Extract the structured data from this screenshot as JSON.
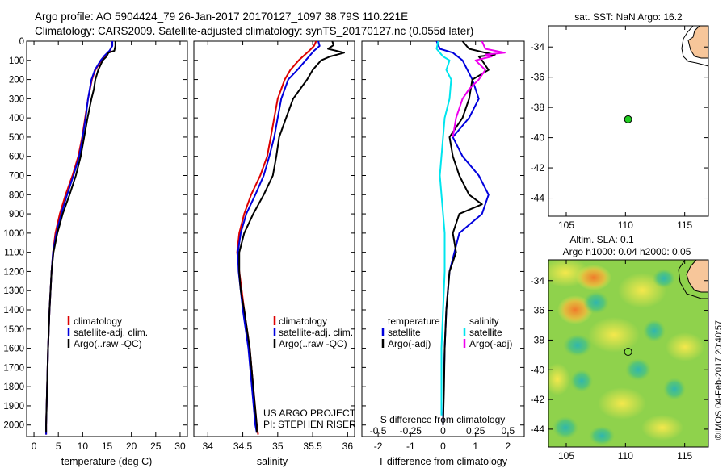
{
  "title": {
    "line1": "Argo profile: AO 5904424_79 26-Jan-2017 20170127_1097 38.79S 110.221E",
    "line2": "Climatology: CARS2009. Satellite-adjusted climatology: synTS_20170127.nc (0.055d later)"
  },
  "colors": {
    "climatology": "#dd0000",
    "satellite": "#0000dd",
    "argo": "#000000",
    "sal_satellite": "#00e5ee",
    "sal_argo": "#ee00ee",
    "land": "#f7c69a",
    "float_marker": "#22cc22"
  },
  "chart_data": [
    {
      "type": "line",
      "name": "temperature-profile",
      "xlabel": "temperature (deg C)",
      "xlim": [
        -1.5,
        31.5
      ],
      "ylim": [
        2060,
        0
      ],
      "xticks": [
        "0",
        "5",
        "10",
        "15",
        "20",
        "25",
        "30"
      ],
      "yticks": [
        "0",
        "100",
        "200",
        "300",
        "400",
        "500",
        "600",
        "700",
        "800",
        "900",
        "1000",
        "1100",
        "1200",
        "1300",
        "1400",
        "1500",
        "1600",
        "1700",
        "1800",
        "1900",
        "2000"
      ],
      "legend": [
        "climatology",
        "satellite-adj. clim.",
        "Argo(..raw -QC)"
      ],
      "series": [
        {
          "name": "climatology",
          "color": "#dd0000",
          "depth": [
            0,
            25,
            50,
            75,
            100,
            150,
            200,
            300,
            400,
            500,
            600,
            700,
            800,
            900,
            1000,
            1100,
            1200,
            1400,
            1600,
            1800,
            2000,
            2050
          ],
          "values": [
            16.0,
            16.0,
            15.6,
            14.6,
            13.8,
            12.6,
            11.9,
            11.1,
            10.5,
            9.9,
            9.1,
            7.9,
            6.5,
            5.3,
            4.4,
            3.9,
            3.6,
            3.2,
            2.9,
            2.7,
            2.5,
            2.5
          ]
        },
        {
          "name": "satellite-adj. clim.",
          "color": "#0000dd",
          "depth": [
            0,
            25,
            50,
            75,
            100,
            150,
            200,
            300,
            400,
            500,
            600,
            700,
            800,
            900,
            1000,
            1100,
            1200,
            1400,
            1600,
            1800,
            2000,
            2050
          ],
          "values": [
            16.1,
            16.1,
            15.5,
            14.5,
            13.7,
            12.5,
            11.8,
            11.1,
            10.6,
            10.0,
            9.3,
            8.1,
            6.8,
            5.6,
            4.6,
            3.9,
            3.6,
            3.2,
            2.9,
            2.7,
            2.5,
            2.5
          ]
        },
        {
          "name": "Argo(..raw -QC)",
          "color": "#000000",
          "depth": [
            0,
            25,
            50,
            60,
            80,
            100,
            150,
            200,
            250,
            300,
            350,
            400,
            500,
            600,
            700,
            800,
            900,
            1000,
            1100,
            1200,
            1400,
            1600,
            1800,
            2000,
            2040
          ],
          "values": [
            16.7,
            16.7,
            16.5,
            15.3,
            14.9,
            14.1,
            13.2,
            12.6,
            12.3,
            11.8,
            11.4,
            11.0,
            10.3,
            9.6,
            8.6,
            7.3,
            5.9,
            4.8,
            4.0,
            3.6,
            3.2,
            2.9,
            2.7,
            2.5,
            2.5
          ]
        }
      ]
    },
    {
      "type": "line",
      "name": "salinity-profile",
      "xlabel": "salinity",
      "xlim": [
        33.8,
        36.1
      ],
      "ylim": [
        2060,
        0
      ],
      "xticks": [
        "34",
        "34.5",
        "35",
        "35.5",
        "36"
      ],
      "legend": [
        "climatology",
        "satellite-adj. clim.",
        "Argo(..raw -QC)"
      ],
      "annotation": [
        "US ARGO PROJECT",
        "PI: STEPHEN RISER"
      ],
      "series": [
        {
          "name": "climatology",
          "color": "#dd0000",
          "depth": [
            0,
            25,
            50,
            100,
            150,
            200,
            300,
            400,
            500,
            600,
            700,
            800,
            900,
            1000,
            1100,
            1200,
            1400,
            1600,
            1800,
            2000,
            2050
          ],
          "values": [
            35.55,
            35.52,
            35.45,
            35.3,
            35.18,
            35.1,
            35.0,
            34.95,
            34.9,
            34.85,
            34.75,
            34.62,
            34.52,
            34.45,
            34.42,
            34.45,
            34.52,
            34.6,
            34.65,
            34.7,
            34.72
          ]
        },
        {
          "name": "satellite-adj. clim.",
          "color": "#0000dd",
          "depth": [
            0,
            25,
            50,
            100,
            150,
            200,
            300,
            400,
            500,
            600,
            700,
            800,
            900,
            1000,
            1100,
            1200,
            1400,
            1600,
            1800,
            2000,
            2040
          ],
          "values": [
            35.58,
            35.6,
            35.52,
            35.4,
            35.28,
            35.15,
            35.05,
            35.0,
            34.95,
            34.88,
            34.8,
            34.68,
            34.55,
            34.47,
            34.43,
            34.44,
            34.5,
            34.58,
            34.63,
            34.68,
            34.7
          ]
        },
        {
          "name": "Argo(..raw -QC)",
          "color": "#000000",
          "depth": [
            0,
            20,
            40,
            60,
            70,
            80,
            100,
            150,
            200,
            250,
            300,
            400,
            500,
            600,
            700,
            800,
            900,
            1000,
            1100,
            1200,
            1300,
            1400,
            1600,
            1800,
            2000,
            2040
          ],
          "values": [
            35.78,
            35.8,
            35.72,
            35.95,
            35.85,
            35.75,
            35.62,
            35.5,
            35.42,
            35.32,
            35.22,
            35.12,
            35.02,
            34.98,
            34.93,
            34.8,
            34.65,
            34.52,
            34.45,
            34.45,
            34.47,
            34.52,
            34.6,
            34.65,
            34.7,
            34.7
          ]
        }
      ]
    },
    {
      "type": "line",
      "name": "difference-profile",
      "xlabel": "T difference from climatology",
      "xlabel_top": "S difference from climatology",
      "xlim": [
        -2.5,
        2.5
      ],
      "ylim": [
        2060,
        0
      ],
      "xticks": [
        "-2",
        "-1",
        "0",
        "1",
        "2"
      ],
      "xticks_s": [
        "-0.5",
        "-0.25",
        "0",
        "0.25",
        "0.5"
      ],
      "legend_left_title": "temperature",
      "legend_right_title": "salinity",
      "legend": [
        "satellite",
        "Argo(-adj)",
        "satellite",
        "Argo(-adj)"
      ],
      "series": [
        {
          "name": "satellite",
          "color": "#0000dd",
          "depth": [
            0,
            40,
            60,
            100,
            200,
            300,
            400,
            500,
            600,
            700,
            800,
            900,
            1000,
            1200,
            1400,
            1600,
            1800,
            2000
          ],
          "values": [
            -0.2,
            -0.1,
            0.3,
            0.6,
            0.9,
            1.1,
            0.8,
            0.3,
            0.6,
            1.1,
            1.4,
            1.2,
            0.5,
            0.2,
            0.1,
            0.05,
            0.02,
            0.0
          ]
        },
        {
          "name": "Argo(-adj)",
          "color": "#000000",
          "depth": [
            0,
            40,
            60,
            70,
            80,
            100,
            150,
            200,
            300,
            400,
            500,
            600,
            700,
            800,
            850,
            900,
            1000,
            1100,
            1200,
            1400,
            1600,
            1800,
            2000
          ],
          "values": [
            0.6,
            0.8,
            1.3,
            1.6,
            1.1,
            1.2,
            1.4,
            0.9,
            0.8,
            0.6,
            0.2,
            0.3,
            0.5,
            0.8,
            1.2,
            0.5,
            0.3,
            0.4,
            0.2,
            0.1,
            0.05,
            0.03,
            0.0
          ]
        },
        {
          "name": "satellite",
          "color": "#00e5ee",
          "depth": [
            0,
            40,
            60,
            80,
            100,
            150,
            200,
            300,
            400,
            500,
            600,
            700,
            800,
            900,
            1000,
            1200,
            1400,
            1600,
            1800,
            1950
          ],
          "values": [
            -0.15,
            -0.2,
            -0.1,
            0.0,
            0.2,
            0.1,
            0.25,
            0.2,
            0.05,
            0.0,
            -0.05,
            -0.1,
            -0.05,
            0.0,
            0.05,
            0.05,
            0.0,
            -0.05,
            -0.05,
            -0.05
          ]
        },
        {
          "name": "Argo(-adj)",
          "color": "#ee00ee",
          "depth": [
            0,
            40,
            60,
            70,
            80,
            100,
            150,
            200,
            250,
            300,
            350,
            400,
            500
          ],
          "values": [
            1.2,
            1.3,
            1.9,
            1.3,
            1.5,
            1.0,
            1.3,
            1.1,
            0.8,
            0.6,
            0.5,
            0.4,
            0.3
          ]
        }
      ]
    },
    {
      "type": "scatter",
      "name": "sst-map",
      "title": "sat. SST: NaN Argo: 16.2",
      "xlim": [
        103.5,
        117
      ],
      "ylim": [
        -45.2,
        -32.6
      ],
      "xticks": [
        "105",
        "110",
        "115"
      ],
      "yticks": [
        "-34",
        "-36",
        "-38",
        "-40",
        "-42",
        "-44"
      ],
      "points": [
        {
          "lon": 110.22,
          "lat": -38.79
        }
      ]
    },
    {
      "type": "heatmap",
      "name": "sla-map",
      "title_line1": "Altim. SLA: 0.1",
      "title_line2": "Argo h1000: 0.04 h2000: 0.05",
      "side_label": "©IMOS 04-Feb-2017 20:40:57",
      "xlim": [
        103.5,
        117
      ],
      "ylim": [
        -45.2,
        -32.6
      ],
      "xticks": [
        "105",
        "110",
        "115"
      ],
      "yticks": [
        "-34",
        "-36",
        "-38",
        "-40",
        "-42",
        "-44"
      ],
      "points": [
        {
          "lon": 110.22,
          "lat": -38.79
        }
      ]
    }
  ]
}
